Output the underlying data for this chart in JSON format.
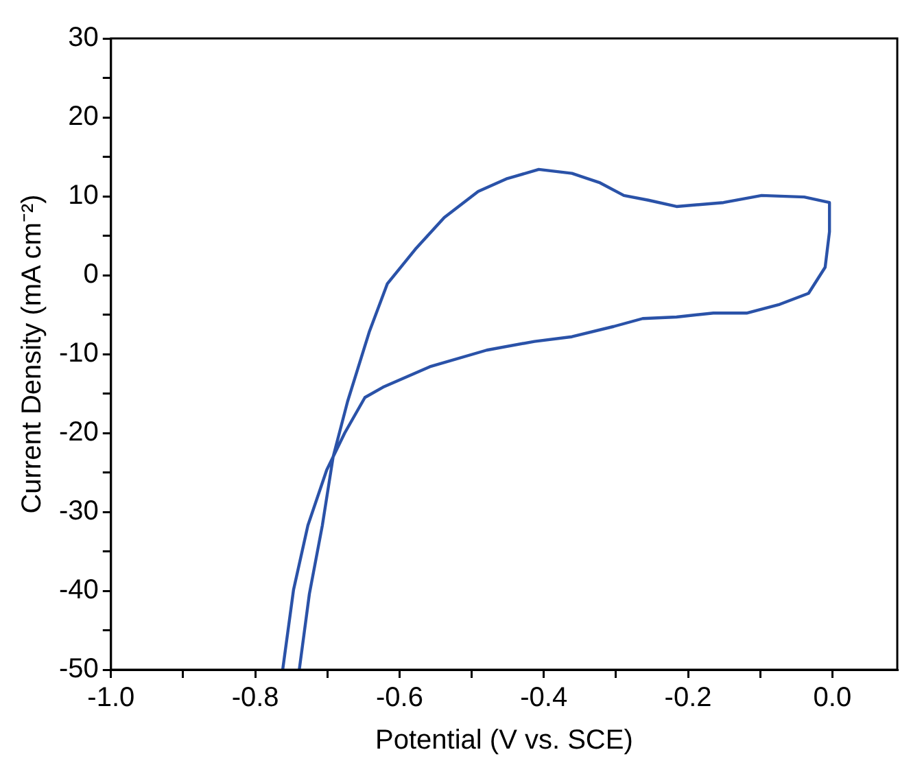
{
  "chart_data": {
    "type": "line",
    "xlabel": "Potential (V vs. SCE)",
    "ylabel": "Current Density (mA cm⁻²)",
    "xlim": [
      -1.0,
      0.09
    ],
    "ylim": [
      -50,
      30
    ],
    "xticks": [
      {
        "value": -1.0,
        "label": "-1.0"
      },
      {
        "value": -0.9,
        "label": null
      },
      {
        "value": -0.8,
        "label": "-0.8"
      },
      {
        "value": -0.7,
        "label": null
      },
      {
        "value": -0.6,
        "label": "-0.6"
      },
      {
        "value": -0.5,
        "label": null
      },
      {
        "value": -0.4,
        "label": "-0.4"
      },
      {
        "value": -0.3,
        "label": null
      },
      {
        "value": -0.2,
        "label": "-0.2"
      },
      {
        "value": -0.1,
        "label": null
      },
      {
        "value": 0.0,
        "label": "0.0"
      }
    ],
    "yticks": [
      -50,
      {
        "value": -45,
        "label": null
      },
      -40,
      {
        "value": -35,
        "label": null
      },
      -30,
      {
        "value": -25,
        "label": null
      },
      -20,
      {
        "value": -15,
        "label": null
      },
      -10,
      {
        "value": -5,
        "label": null
      },
      0,
      {
        "value": 5,
        "label": null
      },
      10,
      {
        "value": 15,
        "label": null
      },
      20,
      {
        "value": 25,
        "label": null
      },
      30
    ],
    "grid": false,
    "legend": false,
    "marker": "none",
    "line_style": "solid",
    "series": [
      {
        "color": "#2a52a8",
        "x": [
          -0.739,
          -0.725,
          -0.707,
          -0.692,
          -0.672,
          -0.642,
          -0.617,
          -0.578,
          -0.538,
          -0.491,
          -0.452,
          -0.407,
          -0.361,
          -0.322,
          -0.289,
          -0.255,
          -0.216,
          -0.151,
          -0.098,
          -0.039,
          -0.004,
          -0.004,
          -0.01,
          -0.033,
          -0.073,
          -0.118,
          -0.165,
          -0.216,
          -0.263,
          -0.303,
          -0.361,
          -0.413,
          -0.479,
          -0.558,
          -0.623,
          -0.648,
          -0.676,
          -0.701,
          -0.727,
          -0.747,
          -0.762
        ],
        "values": [
          -50,
          -40.4,
          -31.7,
          -23,
          -16,
          -7.2,
          -1.1,
          3.3,
          7.3,
          10.6,
          12.2,
          13.4,
          12.9,
          11.7,
          10.1,
          9.5,
          8.7,
          9.2,
          10.1,
          9.9,
          9.2,
          5.5,
          1.0,
          -2.3,
          -3.7,
          -4.8,
          -4.8,
          -5.3,
          -5.5,
          -6.5,
          -7.8,
          -8.4,
          -9.5,
          -11.6,
          -14.2,
          -15.5,
          -20.0,
          -24.7,
          -31.7,
          -39.9,
          -50
        ]
      }
    ]
  }
}
